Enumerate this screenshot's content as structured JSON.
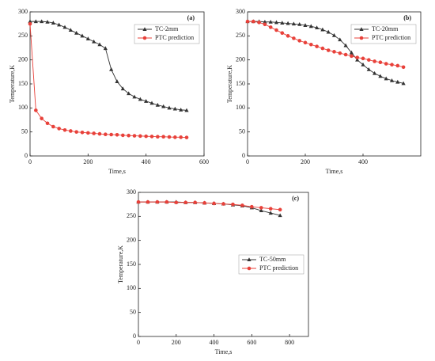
{
  "chart_data": [
    {
      "type": "line",
      "title": "(a)",
      "xlabel": "Time,s",
      "ylabel": "Temperature,K",
      "x": [
        0,
        20,
        40,
        60,
        80,
        100,
        120,
        140,
        160,
        180,
        200,
        220,
        240,
        260,
        280,
        300,
        320,
        340,
        360,
        380,
        400,
        420,
        440,
        460,
        480,
        500,
        520,
        540
      ],
      "series": [
        {
          "name": "TC-2mm",
          "color": "#333333",
          "marker": "triangle",
          "values": [
            280,
            280,
            280,
            279,
            277,
            273,
            268,
            262,
            256,
            250,
            244,
            238,
            232,
            224,
            180,
            155,
            140,
            130,
            123,
            118,
            114,
            110,
            106,
            103,
            100,
            98,
            96,
            95
          ]
        },
        {
          "name": "PTC prediction",
          "color": "#e8413a",
          "marker": "circle",
          "values": [
            275,
            95,
            78,
            68,
            61,
            57,
            54,
            52,
            50,
            49,
            48,
            47,
            46,
            45,
            44.5,
            44,
            43,
            42.5,
            42,
            41.5,
            41,
            40.5,
            40,
            40,
            39.5,
            39,
            39,
            38.5
          ]
        }
      ],
      "xlim": [
        0,
        600
      ],
      "xticks": [
        0,
        200,
        400,
        600
      ],
      "ylim": [
        0,
        300
      ],
      "yticks": [
        0,
        50,
        100,
        150,
        200,
        250,
        300
      ],
      "legend": "upper right"
    },
    {
      "type": "line",
      "title": "(b)",
      "xlabel": "Time,s",
      "ylabel": "Temperature,K",
      "x": [
        0,
        20,
        40,
        60,
        80,
        100,
        120,
        140,
        160,
        180,
        200,
        220,
        240,
        260,
        280,
        300,
        320,
        340,
        360,
        380,
        400,
        420,
        440,
        460,
        480,
        500,
        520,
        540
      ],
      "series": [
        {
          "name": "TC-20mm",
          "color": "#333333",
          "marker": "triangle",
          "values": [
            280,
            280,
            280,
            279,
            279,
            278,
            277,
            276,
            275,
            274,
            272,
            270,
            267,
            263,
            258,
            251,
            242,
            230,
            215,
            200,
            190,
            180,
            172,
            166,
            161,
            157,
            154,
            151
          ]
        },
        {
          "name": "PTC prediction",
          "color": "#e8413a",
          "marker": "circle",
          "values": [
            280,
            280,
            278,
            274,
            268,
            262,
            256,
            250,
            245,
            240,
            236,
            232,
            228,
            224,
            220,
            217,
            214,
            211,
            208,
            205,
            203,
            200,
            197,
            195,
            192,
            190,
            188,
            185
          ]
        }
      ],
      "xlim": [
        0,
        600
      ],
      "xticks": [
        0,
        200,
        400
      ],
      "ylim": [
        0,
        300
      ],
      "yticks": [
        0,
        50,
        100,
        150,
        200,
        250,
        300
      ],
      "legend": "upper right"
    },
    {
      "type": "line",
      "title": "(c)",
      "xlabel": "Time,s",
      "ylabel": "Temperature,K",
      "x": [
        0,
        50,
        100,
        150,
        200,
        250,
        300,
        350,
        400,
        450,
        500,
        550,
        600,
        650,
        700,
        750
      ],
      "series": [
        {
          "name": "TC-50mm",
          "color": "#333333",
          "marker": "triangle",
          "values": [
            280,
            280,
            280,
            280,
            280,
            279,
            279,
            278,
            277,
            276,
            274,
            272,
            268,
            262,
            257,
            252
          ]
        },
        {
          "name": "PTC prediction",
          "color": "#e8413a",
          "marker": "circle",
          "values": [
            280,
            280,
            280,
            280,
            279,
            279,
            279,
            278,
            277,
            276,
            275,
            273,
            270,
            268,
            266,
            264
          ]
        }
      ],
      "xlim": [
        0,
        900
      ],
      "xticks": [
        0,
        200,
        400,
        600,
        800
      ],
      "ylim": [
        0,
        300
      ],
      "yticks": [
        0,
        50,
        100,
        150,
        200,
        250,
        300
      ],
      "legend": "center right"
    }
  ]
}
